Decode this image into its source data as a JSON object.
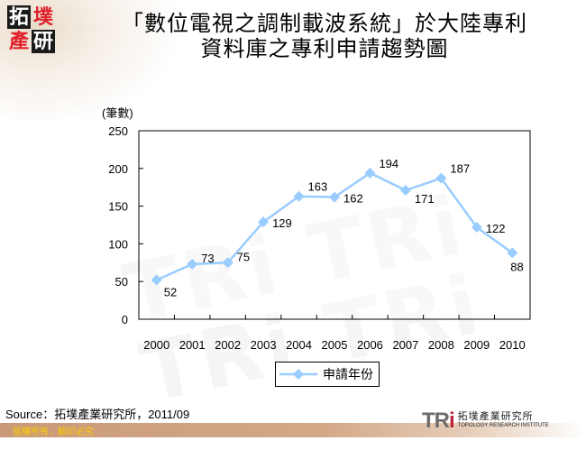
{
  "header": {
    "logo_chars": [
      "拓",
      "墣",
      "產",
      "研"
    ],
    "title_line1": "「數位電視之調制載波系統」於大陸專利",
    "title_line2": "資料庫之專利申請趨勢圖"
  },
  "chart_data": {
    "type": "line",
    "title": "「數位電視之調制載波系統」於大陸專利資料庫之專利申請趨勢圖",
    "xlabel": "",
    "ylabel": "(筆數)",
    "categories": [
      "2000",
      "2001",
      "2002",
      "2003",
      "2004",
      "2005",
      "2006",
      "2007",
      "2008",
      "2009",
      "2010"
    ],
    "series": [
      {
        "name": "申請年份",
        "values": [
          52,
          73,
          75,
          129,
          163,
          162,
          194,
          171,
          187,
          122,
          88
        ],
        "color": "#99CCFF",
        "marker": "diamond"
      }
    ],
    "ylim": [
      0,
      250
    ],
    "yticks": [
      0,
      50,
      100,
      150,
      200,
      250
    ],
    "grid": false,
    "legend_position": "bottom",
    "data_labels": true
  },
  "legend": {
    "label": "申請年份"
  },
  "source": "Source：拓墣產業研究所，2011/09",
  "footer": {
    "copyright": "版權所有．翻印必究",
    "brand_mark": "TRi",
    "brand_cn": "拓墣產業研究所",
    "brand_en": "TOPOLOGY RESEARCH INSTITUTE"
  },
  "colors": {
    "series": "#99CCFF",
    "footer_bar": "#C99A78",
    "footer_text": "#FFCC00",
    "logo_red": "#E0202A"
  }
}
